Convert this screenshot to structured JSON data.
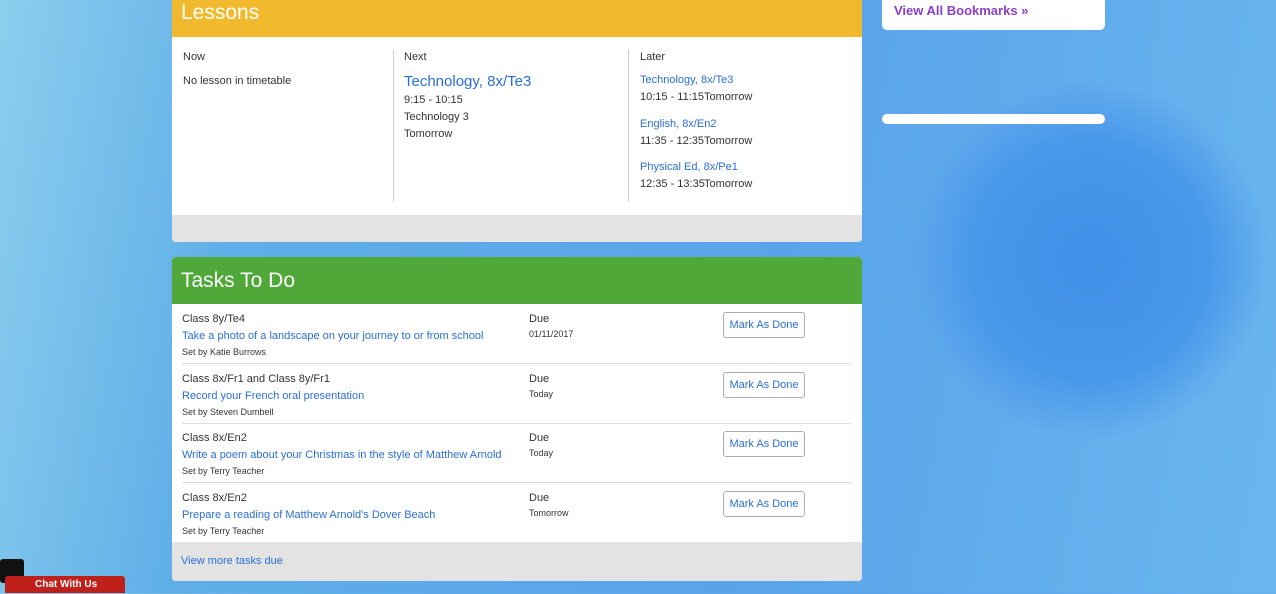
{
  "lessons": {
    "title": "Lessons",
    "now": {
      "label": "Now",
      "text": "No lesson in timetable"
    },
    "next": {
      "label": "Next",
      "title": "Technology, 8x/Te3",
      "time": "9:15 - 10:15",
      "room": "Technology 3",
      "day": "Tomorrow"
    },
    "later": {
      "label": "Later",
      "items": [
        {
          "title": "Technology, 8x/Te3",
          "time": "10:15 - 11:15",
          "day": "Tomorrow"
        },
        {
          "title": "English, 8x/En2",
          "time": "11:35 - 12:35",
          "day": "Tomorrow"
        },
        {
          "title": "Physical Ed, 8x/Pe1",
          "time": "12:35 - 13:35",
          "day": "Tomorrow"
        }
      ]
    }
  },
  "tasks": {
    "title": "Tasks To Do",
    "items": [
      {
        "class": "Class 8y/Te4",
        "task": "Take a photo of a landscape on your journey to or from school",
        "set_by": "Set by Katie Burrows",
        "due_label": "Due",
        "due": "01/11/2017",
        "button": "Mark As Done"
      },
      {
        "class": "Class 8x/Fr1 and Class 8y/Fr1",
        "task": "Record your French oral presentation",
        "set_by": "Set by Steven Dumbell",
        "due_label": "Due",
        "due": "Today",
        "button": "Mark As Done"
      },
      {
        "class": "Class 8x/En2",
        "task": "Write a poem about your Christmas in the style of Matthew Arnold",
        "set_by": "Set by Terry Teacher",
        "due_label": "Due",
        "due": "Today",
        "button": "Mark As Done"
      },
      {
        "class": "Class 8x/En2",
        "task": "Prepare a reading of Matthew Arnold's Dover Beach",
        "set_by": "Set by Terry Teacher",
        "due_label": "Due",
        "due": "Tomorrow",
        "button": "Mark As Done"
      }
    ],
    "more": "View more tasks due"
  },
  "sidebar": {
    "bookmarks_link": "View All Bookmarks »"
  },
  "chat": {
    "label": "Chat With Us"
  }
}
